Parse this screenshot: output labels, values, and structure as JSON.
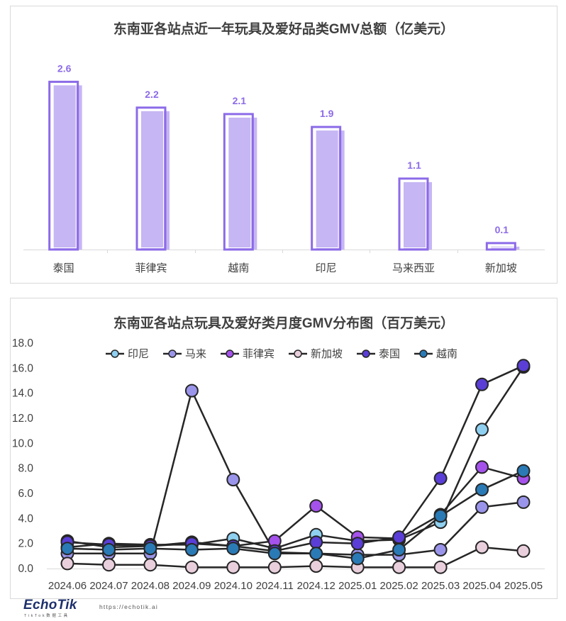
{
  "chart_data": [
    {
      "type": "bar",
      "title": "东南亚各站点近一年玩具及爱好品类GMV总额（亿美元）",
      "categories": [
        "泰国",
        "菲律宾",
        "越南",
        "印尼",
        "马来西亚",
        "新加坡"
      ],
      "values": [
        2.6,
        2.2,
        2.1,
        1.9,
        1.1,
        0.1
      ],
      "data_labels": true,
      "grid": false,
      "legend": "none",
      "colors": {
        "fill": "#c6b6f4",
        "outline": "#8c6be8",
        "label": "#8c6be8"
      }
    },
    {
      "type": "line",
      "title": "东南亚各站点玩具及爱好类月度GMV分布图（百万美元）",
      "x": [
        "2024.06",
        "2024.07",
        "2024.08",
        "2024.09",
        "2024.10",
        "2024.11",
        "2024.12",
        "2025.01",
        "2025.02",
        "2025.03",
        "2025.04",
        "2025.05"
      ],
      "ylim": [
        0,
        18
      ],
      "ytick_labels": [
        "0.0",
        "2.0",
        "4.0",
        "6.0",
        "8.0",
        "10.0",
        "12.0",
        "14.0",
        "16.0",
        "18.0"
      ],
      "grid": false,
      "legend": "top",
      "line_color": "#262626",
      "series": [
        {
          "name": "印尼",
          "color": "#8fd0f0",
          "values": [
            1.7,
            2.0,
            1.9,
            1.9,
            2.4,
            1.6,
            2.7,
            2.2,
            2.3,
            3.7,
            11.1,
            16.1
          ]
        },
        {
          "name": "马来",
          "color": "#9a95ea",
          "values": [
            1.2,
            1.2,
            1.2,
            14.2,
            7.1,
            1.3,
            1.2,
            1.1,
            1.1,
            1.5,
            4.9,
            5.3
          ]
        },
        {
          "name": "菲律宾",
          "color": "#a552ec",
          "values": [
            2.2,
            1.7,
            1.8,
            2.1,
            1.8,
            2.2,
            5.0,
            2.5,
            2.4,
            4.3,
            8.1,
            7.2
          ]
        },
        {
          "name": "新加坡",
          "color": "#e9cfdc",
          "values": [
            0.4,
            0.3,
            0.3,
            0.1,
            0.1,
            0.1,
            0.2,
            0.1,
            0.1,
            0.1,
            1.7,
            1.4
          ]
        },
        {
          "name": "泰国",
          "color": "#5a3ed6",
          "values": [
            2.1,
            1.9,
            1.8,
            2.0,
            1.8,
            1.4,
            2.1,
            2.0,
            2.5,
            7.2,
            14.7,
            16.2
          ]
        },
        {
          "name": "越南",
          "color": "#2a7ab6",
          "values": [
            1.6,
            1.5,
            1.6,
            1.5,
            1.6,
            1.2,
            1.2,
            0.8,
            1.5,
            4.2,
            6.3,
            7.8
          ]
        }
      ]
    }
  ],
  "footer": {
    "logo_text": "EchoTik",
    "logo_subtext": "TikTok数据工具",
    "url": "https://echotik.ai"
  }
}
